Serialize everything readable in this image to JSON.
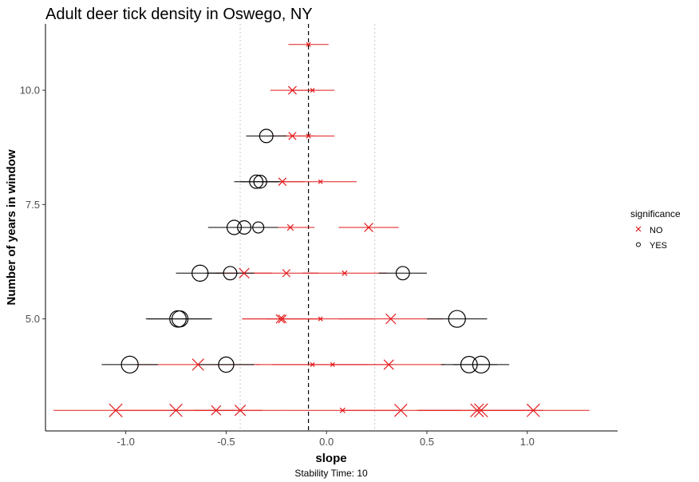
{
  "chart_data": {
    "type": "scatter",
    "title": "Adult deer tick density in Oswego, NY",
    "xlabel": "slope",
    "ylabel": "Number of years in window",
    "caption": "Stability Time: 10",
    "xlim": [
      -1.4,
      1.45
    ],
    "ylim": [
      2.55,
      11.45
    ],
    "xticks": [
      -1.0,
      -0.5,
      0.0,
      0.5,
      1.0
    ],
    "xtick_labels": [
      "-1.0",
      "-0.5",
      "0.0",
      "0.5",
      "1.0"
    ],
    "yticks": [
      5.0,
      7.5,
      10.0
    ],
    "ytick_labels": [
      "5.0",
      "7.5",
      "10.0"
    ],
    "grid": false,
    "reference_lines": {
      "dashed": -0.09,
      "dotted": [
        -0.43,
        0.24
      ]
    },
    "legend": {
      "title": "significance",
      "position": "right",
      "entries": [
        {
          "label": "NO",
          "shape": "x",
          "color": "#e31a1c"
        },
        {
          "label": "YES",
          "shape": "circle",
          "color": "#000000"
        }
      ]
    },
    "colors": {
      "NO": "#e31a1c",
      "YES": "#000000"
    },
    "series": [
      {
        "name": "NO",
        "points": [
          {
            "y": 11,
            "x": -0.09,
            "low": -0.19,
            "high": 0.01,
            "r2": 0.02
          },
          {
            "y": 10,
            "x": -0.17,
            "low": -0.28,
            "high": -0.06,
            "r2": 0.25
          },
          {
            "y": 10,
            "x": -0.07,
            "low": -0.17,
            "high": 0.04,
            "r2": 0.02
          },
          {
            "y": 9,
            "x": -0.17,
            "low": -0.28,
            "high": -0.06,
            "r2": 0.2
          },
          {
            "y": 9,
            "x": -0.09,
            "low": -0.22,
            "high": 0.04,
            "r2": 0.03
          },
          {
            "y": 8,
            "x": -0.22,
            "low": -0.33,
            "high": -0.11,
            "r2": 0.22
          },
          {
            "y": 8,
            "x": -0.03,
            "low": -0.22,
            "high": 0.15,
            "r2": 0.02
          },
          {
            "y": 7,
            "x": -0.18,
            "low": -0.3,
            "high": -0.06,
            "r2": 0.1
          },
          {
            "y": 7,
            "x": 0.21,
            "low": 0.06,
            "high": 0.36,
            "r2": 0.3
          },
          {
            "y": 6,
            "x": -0.41,
            "low": -0.55,
            "high": -0.27,
            "r2": 0.45
          },
          {
            "y": 6,
            "x": -0.2,
            "low": -0.36,
            "high": -0.04,
            "r2": 0.2
          },
          {
            "y": 6,
            "x": 0.09,
            "low": -0.12,
            "high": 0.3,
            "r2": 0.05
          },
          {
            "y": 5,
            "x": -0.23,
            "low": -0.42,
            "high": -0.04,
            "r2": 0.3
          },
          {
            "y": 5,
            "x": -0.22,
            "low": -0.42,
            "high": -0.02,
            "r2": 0.25
          },
          {
            "y": 5,
            "x": -0.03,
            "low": -0.3,
            "high": 0.24,
            "r2": 0.02
          },
          {
            "y": 5,
            "x": 0.32,
            "low": 0.06,
            "high": 0.58,
            "r2": 0.45
          },
          {
            "y": 4,
            "x": -0.64,
            "low": -0.95,
            "high": -0.33,
            "r2": 0.65
          },
          {
            "y": 4,
            "x": -0.07,
            "low": -0.35,
            "high": 0.21,
            "r2": 0.02
          },
          {
            "y": 4,
            "x": 0.03,
            "low": -0.27,
            "high": 0.33,
            "r2": 0.02
          },
          {
            "y": 4,
            "x": 0.31,
            "low": 0.03,
            "high": 0.59,
            "r2": 0.42
          },
          {
            "y": 3,
            "x": -1.05,
            "low": -1.36,
            "high": -0.74,
            "r2": 0.9
          },
          {
            "y": 3,
            "x": -0.75,
            "low": -1.05,
            "high": -0.45,
            "r2": 0.82
          },
          {
            "y": 3,
            "x": -0.55,
            "low": -0.78,
            "high": -0.32,
            "r2": 0.4
          },
          {
            "y": 3,
            "x": -0.43,
            "low": -0.66,
            "high": -0.2,
            "r2": 0.55
          },
          {
            "y": 3,
            "x": 0.08,
            "low": -0.2,
            "high": 0.36,
            "r2": 0.05
          },
          {
            "y": 3,
            "x": 0.37,
            "low": 0.07,
            "high": 0.67,
            "r2": 0.8
          },
          {
            "y": 3,
            "x": 0.75,
            "low": 0.45,
            "high": 1.05,
            "r2": 0.9
          },
          {
            "y": 3,
            "x": 0.77,
            "low": 0.46,
            "high": 1.08,
            "r2": 0.95
          },
          {
            "y": 3,
            "x": 1.03,
            "low": 0.75,
            "high": 1.31,
            "r2": 0.85
          }
        ]
      },
      {
        "name": "YES",
        "points": [
          {
            "y": 9,
            "x": -0.3,
            "low": -0.4,
            "high": -0.2,
            "r2": 0.5
          },
          {
            "y": 8,
            "x": -0.35,
            "low": -0.46,
            "high": -0.24,
            "r2": 0.5
          },
          {
            "y": 8,
            "x": -0.33,
            "low": -0.43,
            "high": -0.23,
            "r2": 0.45
          },
          {
            "y": 7,
            "x": -0.46,
            "low": -0.59,
            "high": -0.33,
            "r2": 0.6
          },
          {
            "y": 7,
            "x": -0.41,
            "low": -0.53,
            "high": -0.29,
            "r2": 0.5
          },
          {
            "y": 7,
            "x": -0.34,
            "low": -0.44,
            "high": -0.24,
            "r2": 0.3
          },
          {
            "y": 6,
            "x": -0.63,
            "low": -0.75,
            "high": -0.51,
            "r2": 0.8
          },
          {
            "y": 6,
            "x": -0.48,
            "low": -0.6,
            "high": -0.36,
            "r2": 0.5
          },
          {
            "y": 6,
            "x": 0.38,
            "low": 0.26,
            "high": 0.5,
            "r2": 0.5
          },
          {
            "y": 5,
            "x": -0.74,
            "low": -0.9,
            "high": -0.58,
            "r2": 0.85
          },
          {
            "y": 5,
            "x": -0.73,
            "low": -0.89,
            "high": -0.57,
            "r2": 0.8
          },
          {
            "y": 5,
            "x": 0.65,
            "low": 0.5,
            "high": 0.8,
            "r2": 0.9
          },
          {
            "y": 4,
            "x": -0.98,
            "low": -1.12,
            "high": -0.84,
            "r2": 0.9
          },
          {
            "y": 4,
            "x": -0.5,
            "low": -0.64,
            "high": -0.36,
            "r2": 0.7
          },
          {
            "y": 4,
            "x": 0.71,
            "low": 0.57,
            "high": 0.85,
            "r2": 0.85
          },
          {
            "y": 4,
            "x": 0.77,
            "low": 0.63,
            "high": 0.91,
            "r2": 0.9
          }
        ]
      }
    ]
  }
}
